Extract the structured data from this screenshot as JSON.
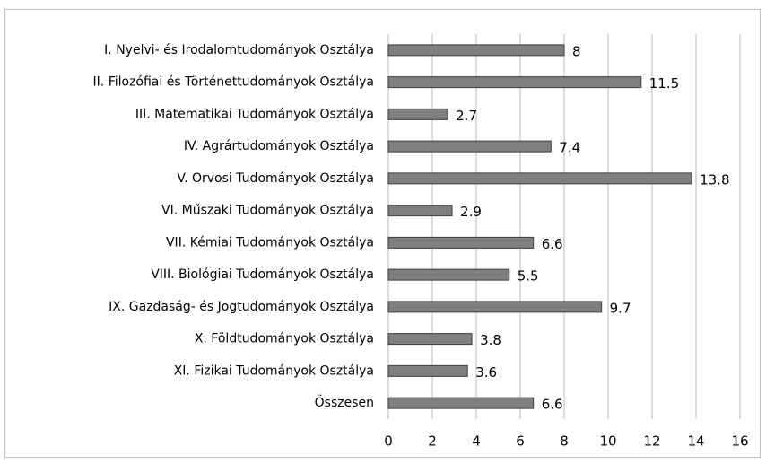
{
  "chart_data": {
    "type": "bar",
    "orientation": "horizontal",
    "categories": [
      "I. Nyelvi- és Irodalomtudományok Osztálya",
      "II. Filozófiai és Történettudományok Osztálya",
      "III. Matematikai Tudományok Osztálya",
      "IV. Agrártudományok Osztálya",
      "V. Orvosi Tudományok Osztálya",
      "VI. Műszaki Tudományok Osztálya",
      "VII. Kémiai Tudományok Osztálya",
      "VIII. Biológiai Tudományok Osztálya",
      "IX. Gazdaság- és Jogtudományok Osztálya",
      "X. Földtudományok Osztálya",
      "XI. Fizikai Tudományok Osztálya",
      "Összesen"
    ],
    "values": [
      8,
      11.5,
      2.7,
      7.4,
      13.8,
      2.9,
      6.6,
      5.5,
      9.7,
      3.8,
      3.6,
      6.6
    ],
    "color": "#7f7f7f",
    "xlim": [
      0,
      16
    ],
    "xticks": [
      0,
      2,
      4,
      6,
      8,
      10,
      12,
      14,
      16
    ],
    "grid": true
  }
}
